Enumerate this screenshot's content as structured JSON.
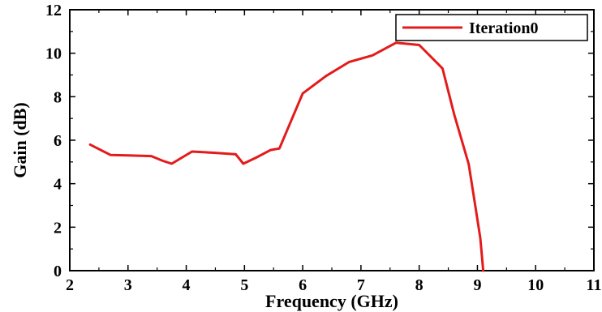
{
  "chart_data": {
    "type": "line",
    "xlabel": "Frequency (GHz)",
    "ylabel": "Gain (dB)",
    "xlim": [
      2,
      11
    ],
    "ylim": [
      0,
      12
    ],
    "x_ticks": [
      2,
      3,
      4,
      5,
      6,
      7,
      8,
      9,
      10,
      11
    ],
    "y_ticks": [
      0,
      2,
      4,
      6,
      8,
      10,
      12
    ],
    "grid": false,
    "legend_position": "top-right",
    "series": [
      {
        "name": "Iteration0",
        "color": "#e31b1b",
        "x": [
          2.35,
          2.7,
          3.0,
          3.4,
          3.6,
          3.75,
          4.1,
          4.5,
          4.85,
          4.98,
          5.2,
          5.45,
          5.6,
          6.0,
          6.4,
          6.8,
          7.2,
          7.6,
          8.0,
          8.4,
          8.6,
          8.85,
          8.95,
          9.05,
          9.1
        ],
        "y": [
          5.8,
          5.32,
          5.3,
          5.27,
          5.05,
          4.92,
          5.48,
          5.42,
          5.35,
          4.92,
          5.2,
          5.55,
          5.62,
          8.15,
          8.95,
          9.6,
          9.9,
          10.48,
          10.38,
          9.3,
          7.2,
          4.9,
          3.2,
          1.5,
          0.0
        ]
      }
    ]
  }
}
